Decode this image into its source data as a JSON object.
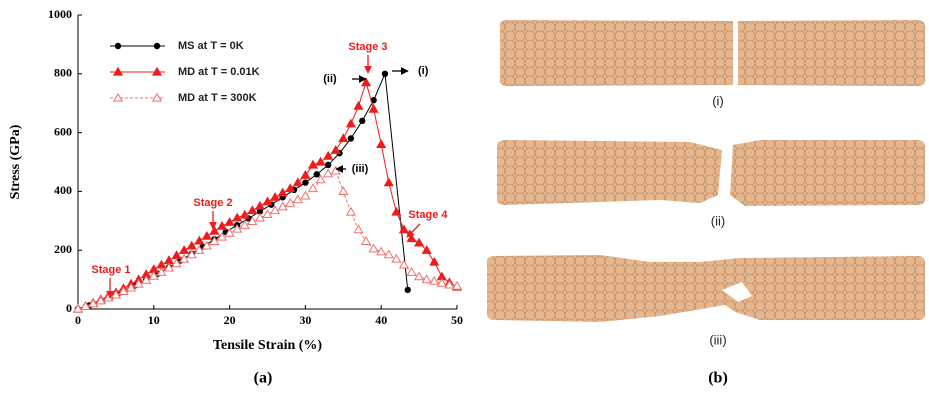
{
  "chart_data": {
    "type": "line",
    "xlabel": "Tensile Strain (%)",
    "ylabel": "Stress (GPa)",
    "xlim": [
      0,
      50
    ],
    "xticks": [
      0,
      10,
      20,
      30,
      40,
      50
    ],
    "ylim": [
      0,
      1000
    ],
    "yticks": [
      0,
      200,
      400,
      600,
      800,
      1000
    ],
    "legend": "upper left",
    "annotations": [
      "Stage 1",
      "Stage 2",
      "Stage 3",
      "Stage 4",
      "(i)",
      "(ii)",
      "(iii)"
    ],
    "series": [
      {
        "name": "MS at T = 0K",
        "color": "#000000",
        "marker": "circle",
        "linestyle": "solid",
        "x": [
          0,
          1.5,
          3,
          4.5,
          6,
          7.5,
          9,
          10.5,
          12,
          13.5,
          15,
          16.5,
          18,
          19.5,
          21,
          22.5,
          24,
          25.5,
          27,
          28.5,
          30,
          31.5,
          33,
          34.5,
          36,
          37.5,
          39,
          40.5,
          43.5
        ],
        "values": [
          0,
          12,
          28,
          45,
          62,
          80,
          100,
          120,
          142,
          165,
          188,
          212,
          237,
          262,
          285,
          308,
          332,
          355,
          380,
          405,
          430,
          458,
          490,
          530,
          580,
          640,
          710,
          800,
          65
        ]
      },
      {
        "name": "MD at T = 0.01K",
        "color": "#ee1c1c",
        "marker": "triangle",
        "linestyle": "solid",
        "x": [
          0,
          1,
          2,
          3,
          4,
          5,
          6,
          7,
          8,
          9,
          10,
          11,
          12,
          13,
          14,
          15,
          16,
          17,
          18,
          19,
          20,
          21,
          22,
          23,
          24,
          25,
          26,
          27,
          28,
          29,
          30,
          31,
          32,
          33,
          34,
          35,
          36,
          37,
          38,
          39,
          40,
          41,
          42,
          43,
          44,
          45,
          46,
          47,
          48,
          49,
          50
        ],
        "values": [
          0,
          10,
          20,
          32,
          44,
          56,
          70,
          85,
          100,
          118,
          135,
          150,
          165,
          182,
          200,
          215,
          232,
          248,
          265,
          282,
          295,
          310,
          320,
          335,
          350,
          365,
          380,
          395,
          410,
          430,
          455,
          490,
          500,
          520,
          540,
          580,
          630,
          690,
          770,
          680,
          560,
          430,
          330,
          270,
          240,
          225,
          200,
          160,
          110,
          90,
          75
        ]
      },
      {
        "name": "MD at T = 300K",
        "color": "#f07070",
        "marker": "open-triangle",
        "linestyle": "dashed",
        "x": [
          0,
          1,
          2,
          3,
          4,
          5,
          6,
          7,
          8,
          9,
          10,
          11,
          12,
          13,
          14,
          15,
          16,
          17,
          18,
          19,
          20,
          21,
          22,
          23,
          24,
          25,
          26,
          27,
          28,
          29,
          30,
          31,
          32,
          33,
          34,
          35,
          36,
          37,
          38,
          39,
          40,
          41,
          42,
          43,
          44,
          45,
          46,
          47,
          48,
          49,
          50
        ],
        "values": [
          0,
          9,
          18,
          28,
          38,
          48,
          60,
          72,
          85,
          98,
          112,
          125,
          140,
          155,
          170,
          185,
          200,
          215,
          230,
          245,
          258,
          272,
          285,
          298,
          310,
          322,
          335,
          348,
          360,
          372,
          385,
          410,
          440,
          460,
          470,
          400,
          330,
          270,
          230,
          205,
          195,
          185,
          170,
          150,
          125,
          110,
          100,
          95,
          88,
          82,
          78
        ]
      }
    ]
  },
  "panel_labels": [
    "(a)",
    "(b)"
  ],
  "image_captions": [
    "(i)",
    "(ii)",
    "(iii)"
  ]
}
